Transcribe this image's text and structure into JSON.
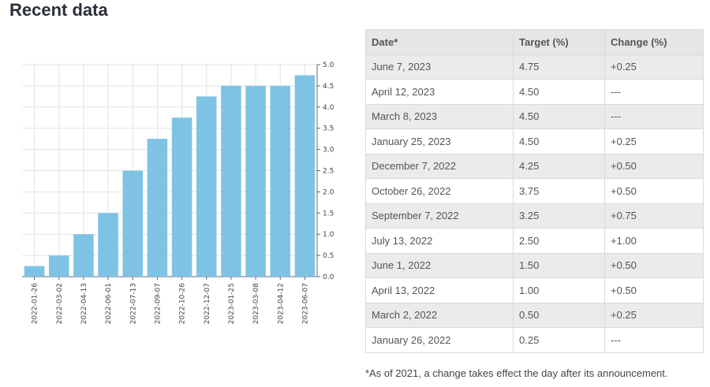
{
  "page": {
    "heading": "Recent data"
  },
  "chart_data": {
    "type": "bar",
    "title": "",
    "xlabel": "",
    "ylabel": "",
    "categories": [
      "2022-01-26",
      "2022-03-02",
      "2022-04-13",
      "2022-06-01",
      "2022-07-13",
      "2022-09-07",
      "2022-10-26",
      "2022-12-07",
      "2023-01-25",
      "2023-03-08",
      "2023-04-12",
      "2023-06-07"
    ],
    "values": [
      0.25,
      0.5,
      1.0,
      1.5,
      2.5,
      3.25,
      3.75,
      4.25,
      4.5,
      4.5,
      4.5,
      4.75
    ],
    "ylim": [
      0,
      5.0
    ],
    "yticks": [
      "0.0",
      "0.5",
      "1.0",
      "1.5",
      "2.0",
      "2.5",
      "3.0",
      "3.5",
      "4.0",
      "4.5",
      "5.0"
    ],
    "grid": true,
    "y_axis_side": "right",
    "bar_color": "#7fc3e4"
  },
  "table": {
    "headers": [
      "Date*",
      "Target (%)",
      "Change (%)"
    ],
    "rows": [
      [
        "June 7, 2023",
        "4.75",
        "+0.25"
      ],
      [
        "April 12, 2023",
        "4.50",
        "---"
      ],
      [
        "March 8, 2023",
        "4.50",
        "---"
      ],
      [
        "January 25, 2023",
        "4.50",
        "+0.25"
      ],
      [
        "December 7, 2022",
        "4.25",
        "+0.50"
      ],
      [
        "October 26, 2022",
        "3.75",
        "+0.50"
      ],
      [
        "September 7, 2022",
        "3.25",
        "+0.75"
      ],
      [
        "July 13, 2022",
        "2.50",
        "+1.00"
      ],
      [
        "June 1, 2022",
        "1.50",
        "+0.50"
      ],
      [
        "April 13, 2022",
        "1.00",
        "+0.50"
      ],
      [
        "March 2, 2022",
        "0.50",
        "+0.25"
      ],
      [
        "January 26, 2022",
        "0.25",
        "---"
      ]
    ]
  },
  "footnote": "*As of 2021, a change takes effect the day after its announcement."
}
